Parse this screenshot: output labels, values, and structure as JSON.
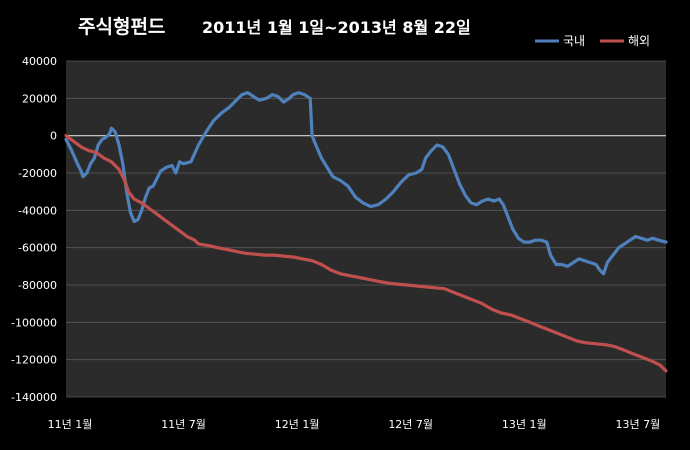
{
  "chart_data": {
    "type": "line",
    "title_main": "주식형펀드",
    "title_period": "2011년 1월 1일~2013년 8월 22일",
    "xlabel": "",
    "ylabel": "",
    "ylim": [
      -140000,
      40000
    ],
    "y_ticks": [
      "40000",
      "20000",
      "0",
      "-20000",
      "-40000",
      "-60000",
      "-80000",
      "-100000",
      "-120000",
      "-140000"
    ],
    "x_range": [
      0,
      31.7
    ],
    "x_ticks": [
      {
        "x": 0,
        "label": "11년 1월"
      },
      {
        "x": 6,
        "label": "11년 7월"
      },
      {
        "x": 12,
        "label": "12년 1월"
      },
      {
        "x": 18,
        "label": "12년 7월"
      },
      {
        "x": 24,
        "label": "13년 1월"
      },
      {
        "x": 30,
        "label": "13년 7월"
      }
    ],
    "grid": true,
    "legend_position": "top-right",
    "background": "#2b2b2b",
    "series": [
      {
        "name": "국내",
        "color": "#4f81bd",
        "points": [
          [
            0.0,
            -2000
          ],
          [
            0.3,
            -8000
          ],
          [
            0.6,
            -15000
          ],
          [
            0.8,
            -19000
          ],
          [
            0.9,
            -22000
          ],
          [
            1.1,
            -20000
          ],
          [
            1.3,
            -15000
          ],
          [
            1.5,
            -12000
          ],
          [
            1.7,
            -5000
          ],
          [
            1.9,
            -2000
          ],
          [
            2.1,
            -1000
          ],
          [
            2.3,
            1000
          ],
          [
            2.4,
            4000
          ],
          [
            2.6,
            2000
          ],
          [
            2.8,
            -5000
          ],
          [
            3.0,
            -15000
          ],
          [
            3.2,
            -30000
          ],
          [
            3.4,
            -41000
          ],
          [
            3.6,
            -46000
          ],
          [
            3.8,
            -45000
          ],
          [
            4.0,
            -40000
          ],
          [
            4.2,
            -33000
          ],
          [
            4.4,
            -28000
          ],
          [
            4.6,
            -27000
          ],
          [
            4.8,
            -23000
          ],
          [
            5.0,
            -19000
          ],
          [
            5.3,
            -17000
          ],
          [
            5.6,
            -16000
          ],
          [
            5.8,
            -20000
          ],
          [
            6.0,
            -14000
          ],
          [
            6.2,
            -15000
          ],
          [
            6.6,
            -14000
          ],
          [
            7.0,
            -5000
          ],
          [
            7.4,
            2000
          ],
          [
            7.8,
            8000
          ],
          [
            8.2,
            12000
          ],
          [
            8.6,
            15000
          ],
          [
            9.0,
            19000
          ],
          [
            9.3,
            22000
          ],
          [
            9.6,
            23000
          ],
          [
            9.9,
            21000
          ],
          [
            10.2,
            19000
          ],
          [
            10.6,
            20000
          ],
          [
            10.9,
            22000
          ],
          [
            11.2,
            21000
          ],
          [
            11.5,
            18000
          ],
          [
            11.8,
            20000
          ],
          [
            12.0,
            22000
          ],
          [
            12.3,
            23000
          ],
          [
            12.6,
            22000
          ],
          [
            12.9,
            20000
          ],
          [
            13.0,
            0
          ],
          [
            13.2,
            -5000
          ],
          [
            13.5,
            -12000
          ],
          [
            13.8,
            -17000
          ],
          [
            14.1,
            -22000
          ],
          [
            14.5,
            -24000
          ],
          [
            14.9,
            -27000
          ],
          [
            15.3,
            -33000
          ],
          [
            15.7,
            -36000
          ],
          [
            16.1,
            -38000
          ],
          [
            16.5,
            -37000
          ],
          [
            16.9,
            -34000
          ],
          [
            17.3,
            -30000
          ],
          [
            17.7,
            -25000
          ],
          [
            18.1,
            -21000
          ],
          [
            18.5,
            -20000
          ],
          [
            18.8,
            -18000
          ],
          [
            19.0,
            -12000
          ],
          [
            19.3,
            -8000
          ],
          [
            19.6,
            -5000
          ],
          [
            19.9,
            -6000
          ],
          [
            20.2,
            -10000
          ],
          [
            20.5,
            -18000
          ],
          [
            20.8,
            -26000
          ],
          [
            21.1,
            -32000
          ],
          [
            21.4,
            -36000
          ],
          [
            21.7,
            -37000
          ],
          [
            22.0,
            -35000
          ],
          [
            22.3,
            -34000
          ],
          [
            22.6,
            -35000
          ],
          [
            22.9,
            -34000
          ],
          [
            23.1,
            -37000
          ],
          [
            23.3,
            -42000
          ],
          [
            23.6,
            -50000
          ],
          [
            23.9,
            -55000
          ],
          [
            24.2,
            -57000
          ],
          [
            24.5,
            -57000
          ],
          [
            24.8,
            -56000
          ],
          [
            25.1,
            -56000
          ],
          [
            25.4,
            -57000
          ],
          [
            25.6,
            -64000
          ],
          [
            25.9,
            -69000
          ],
          [
            26.2,
            -69000
          ],
          [
            26.5,
            -70000
          ],
          [
            26.8,
            -68000
          ],
          [
            27.1,
            -66000
          ],
          [
            27.4,
            -67000
          ],
          [
            27.7,
            -68000
          ],
          [
            28.0,
            -69000
          ],
          [
            28.2,
            -72000
          ],
          [
            28.4,
            -74000
          ],
          [
            28.6,
            -68000
          ],
          [
            28.9,
            -64000
          ],
          [
            29.2,
            -60000
          ],
          [
            29.5,
            -58000
          ],
          [
            29.8,
            -56000
          ],
          [
            30.1,
            -54000
          ],
          [
            30.4,
            -55000
          ],
          [
            30.7,
            -56000
          ],
          [
            31.0,
            -55000
          ],
          [
            31.3,
            -56000
          ],
          [
            31.7,
            -57000
          ]
        ]
      },
      {
        "name": "해외",
        "color": "#c0504d",
        "points": [
          [
            0.0,
            0
          ],
          [
            0.4,
            -3000
          ],
          [
            0.8,
            -6000
          ],
          [
            1.2,
            -8000
          ],
          [
            1.6,
            -9000
          ],
          [
            2.0,
            -12000
          ],
          [
            2.4,
            -14000
          ],
          [
            2.8,
            -18000
          ],
          [
            3.1,
            -24000
          ],
          [
            3.3,
            -30000
          ],
          [
            3.6,
            -34000
          ],
          [
            4.0,
            -36000
          ],
          [
            4.4,
            -39000
          ],
          [
            4.8,
            -42000
          ],
          [
            5.2,
            -45000
          ],
          [
            5.6,
            -48000
          ],
          [
            6.0,
            -51000
          ],
          [
            6.4,
            -54000
          ],
          [
            6.8,
            -56000
          ],
          [
            7.0,
            -58000
          ],
          [
            7.6,
            -59000
          ],
          [
            8.0,
            -60000
          ],
          [
            8.5,
            -61000
          ],
          [
            9.0,
            -62000
          ],
          [
            9.5,
            -63000
          ],
          [
            10.0,
            -63500
          ],
          [
            10.5,
            -64000
          ],
          [
            11.0,
            -64000
          ],
          [
            11.5,
            -64500
          ],
          [
            12.0,
            -65000
          ],
          [
            12.5,
            -66000
          ],
          [
            13.0,
            -67000
          ],
          [
            13.5,
            -69000
          ],
          [
            14.0,
            -72000
          ],
          [
            14.5,
            -74000
          ],
          [
            15.0,
            -75000
          ],
          [
            15.5,
            -76000
          ],
          [
            16.0,
            -77000
          ],
          [
            16.5,
            -78000
          ],
          [
            17.0,
            -79000
          ],
          [
            17.5,
            -79500
          ],
          [
            18.0,
            -80000
          ],
          [
            18.5,
            -80500
          ],
          [
            19.0,
            -81000
          ],
          [
            19.5,
            -81500
          ],
          [
            20.0,
            -82000
          ],
          [
            20.5,
            -84000
          ],
          [
            21.0,
            -86000
          ],
          [
            21.5,
            -88000
          ],
          [
            22.0,
            -90000
          ],
          [
            22.5,
            -93000
          ],
          [
            23.0,
            -95000
          ],
          [
            23.5,
            -96000
          ],
          [
            24.0,
            -98000
          ],
          [
            24.5,
            -100000
          ],
          [
            25.0,
            -102000
          ],
          [
            25.5,
            -104000
          ],
          [
            26.0,
            -106000
          ],
          [
            26.5,
            -108000
          ],
          [
            27.0,
            -110000
          ],
          [
            27.5,
            -111000
          ],
          [
            28.0,
            -111500
          ],
          [
            28.5,
            -112000
          ],
          [
            29.0,
            -113000
          ],
          [
            29.5,
            -115000
          ],
          [
            30.0,
            -117000
          ],
          [
            30.5,
            -119000
          ],
          [
            31.0,
            -121000
          ],
          [
            31.4,
            -123000
          ],
          [
            31.7,
            -126000
          ]
        ]
      }
    ]
  }
}
